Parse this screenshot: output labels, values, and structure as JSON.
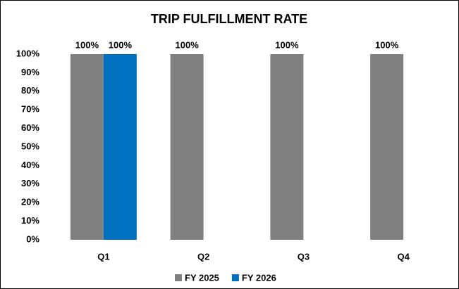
{
  "chart_data": {
    "type": "bar",
    "title": "TRIP FULFILLMENT RATE",
    "categories": [
      "Q1",
      "Q2",
      "Q3",
      "Q4"
    ],
    "series": [
      {
        "name": "FY 2025",
        "color": "#808080",
        "values": [
          100,
          100,
          100,
          100
        ],
        "value_labels": [
          "100%",
          "100%",
          "100%",
          "100%"
        ]
      },
      {
        "name": "FY 2026",
        "color": "#0070c0",
        "values": [
          100,
          null,
          null,
          null
        ],
        "value_labels": [
          "100%",
          null,
          null,
          null
        ]
      }
    ],
    "ylim": [
      0,
      100
    ],
    "yticks": [
      {
        "value": 0,
        "label": "0%"
      },
      {
        "value": 10,
        "label": "10%"
      },
      {
        "value": 20,
        "label": "20%"
      },
      {
        "value": 30,
        "label": "30%"
      },
      {
        "value": 40,
        "label": "40%"
      },
      {
        "value": 50,
        "label": "50%"
      },
      {
        "value": 60,
        "label": "60%"
      },
      {
        "value": 70,
        "label": "70%"
      },
      {
        "value": 80,
        "label": "80%"
      },
      {
        "value": 90,
        "label": "90%"
      },
      {
        "value": 100,
        "label": "100%"
      }
    ],
    "grid": false,
    "legend": "bottom"
  }
}
